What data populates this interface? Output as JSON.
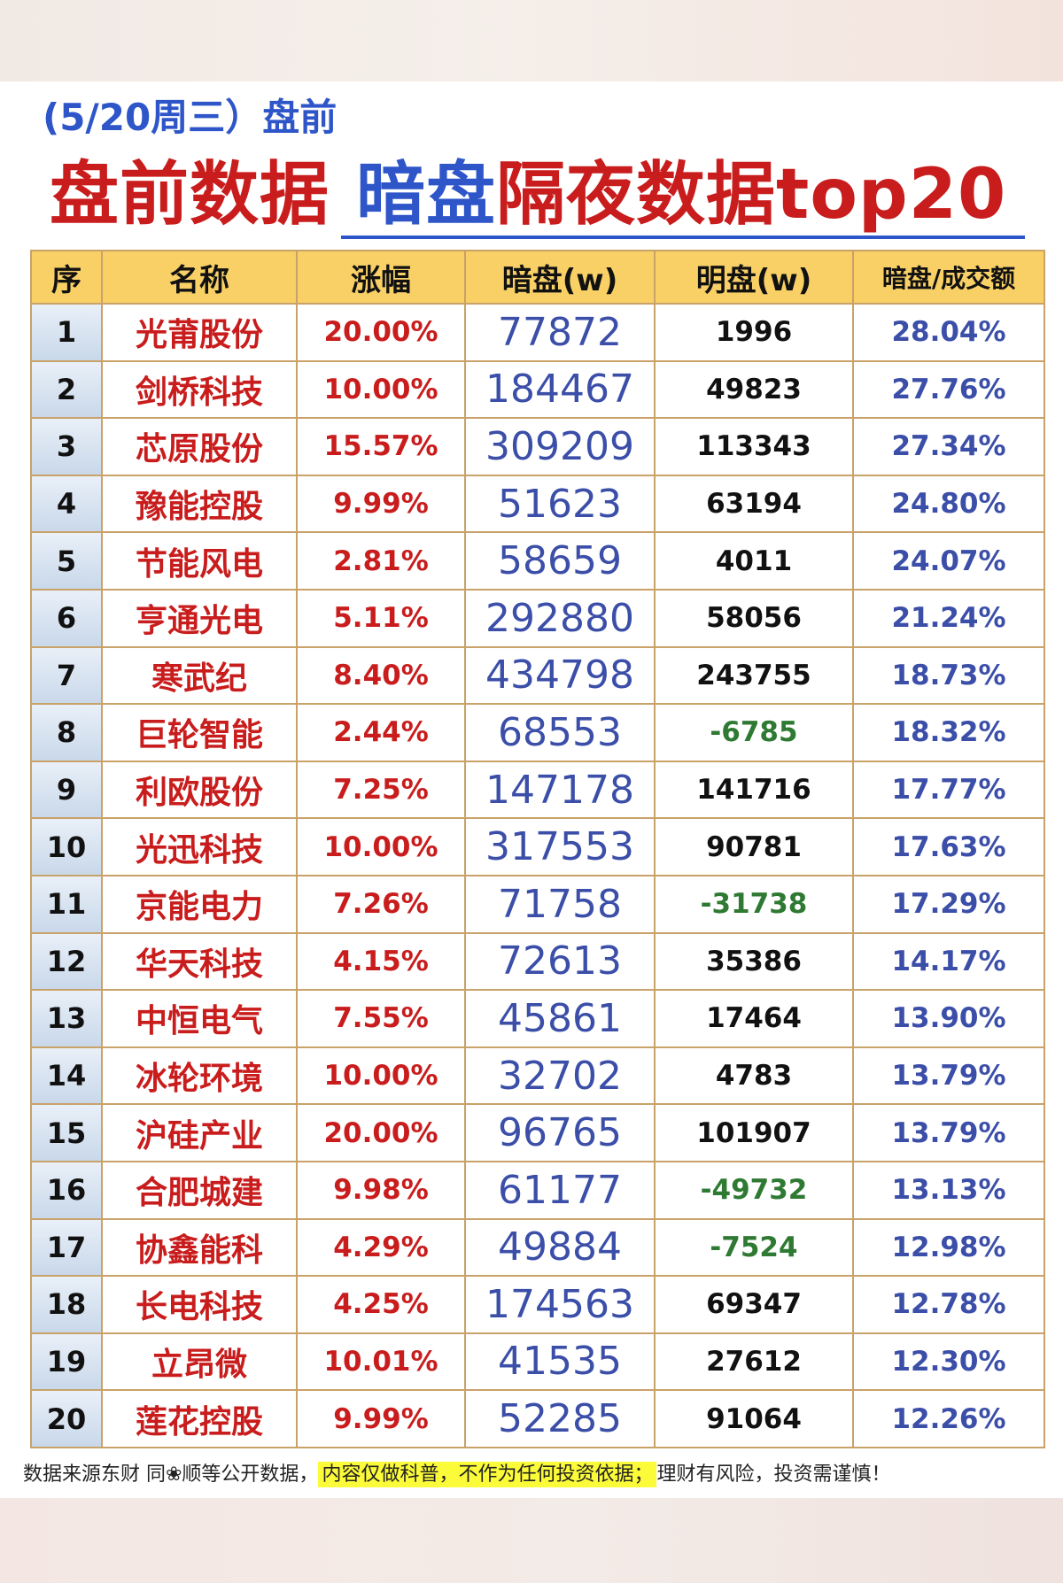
{
  "header": {
    "subtitle": "(5/20周三）盘前",
    "headline_part1": "盘前数据",
    "headline_part2": "暗盘",
    "headline_part3": "隔夜数据top20"
  },
  "table": {
    "columns": [
      "序",
      "名称",
      "涨幅",
      "暗盘(w)",
      "明盘(w)",
      "暗盘/成交额"
    ],
    "rows": [
      {
        "seq": "1",
        "name": "光莆股份",
        "change": "20.00%",
        "dark": "77872",
        "light": "1996",
        "ratio": "28.04%"
      },
      {
        "seq": "2",
        "name": "剑桥科技",
        "change": "10.00%",
        "dark": "184467",
        "light": "49823",
        "ratio": "27.76%"
      },
      {
        "seq": "3",
        "name": "芯原股份",
        "change": "15.57%",
        "dark": "309209",
        "light": "113343",
        "ratio": "27.34%"
      },
      {
        "seq": "4",
        "name": "豫能控股",
        "change": "9.99%",
        "dark": "51623",
        "light": "63194",
        "ratio": "24.80%"
      },
      {
        "seq": "5",
        "name": "节能风电",
        "change": "2.81%",
        "dark": "58659",
        "light": "4011",
        "ratio": "24.07%"
      },
      {
        "seq": "6",
        "name": "亨通光电",
        "change": "5.11%",
        "dark": "292880",
        "light": "58056",
        "ratio": "21.24%"
      },
      {
        "seq": "7",
        "name": "寒武纪",
        "change": "8.40%",
        "dark": "434798",
        "light": "243755",
        "ratio": "18.73%"
      },
      {
        "seq": "8",
        "name": "巨轮智能",
        "change": "2.44%",
        "dark": "68553",
        "light": "-6785",
        "ratio": "18.32%"
      },
      {
        "seq": "9",
        "name": "利欧股份",
        "change": "7.25%",
        "dark": "147178",
        "light": "141716",
        "ratio": "17.77%"
      },
      {
        "seq": "10",
        "name": "光迅科技",
        "change": "10.00%",
        "dark": "317553",
        "light": "90781",
        "ratio": "17.63%"
      },
      {
        "seq": "11",
        "name": "京能电力",
        "change": "7.26%",
        "dark": "71758",
        "light": "-31738",
        "ratio": "17.29%"
      },
      {
        "seq": "12",
        "name": "华天科技",
        "change": "4.15%",
        "dark": "72613",
        "light": "35386",
        "ratio": "14.17%"
      },
      {
        "seq": "13",
        "name": "中恒电气",
        "change": "7.55%",
        "dark": "45861",
        "light": "17464",
        "ratio": "13.90%"
      },
      {
        "seq": "14",
        "name": "冰轮环境",
        "change": "10.00%",
        "dark": "32702",
        "light": "4783",
        "ratio": "13.79%"
      },
      {
        "seq": "15",
        "name": "沪硅产业",
        "change": "20.00%",
        "dark": "96765",
        "light": "101907",
        "ratio": "13.79%"
      },
      {
        "seq": "16",
        "name": "合肥城建",
        "change": "9.98%",
        "dark": "61177",
        "light": "-49732",
        "ratio": "13.13%"
      },
      {
        "seq": "17",
        "name": "协鑫能科",
        "change": "4.29%",
        "dark": "49884",
        "light": "-7524",
        "ratio": "12.98%"
      },
      {
        "seq": "18",
        "name": "长电科技",
        "change": "4.25%",
        "dark": "174563",
        "light": "69347",
        "ratio": "12.78%"
      },
      {
        "seq": "19",
        "name": "立昂微",
        "change": "10.01%",
        "dark": "41535",
        "light": "27612",
        "ratio": "12.30%"
      },
      {
        "seq": "20",
        "name": "莲花控股",
        "change": "9.99%",
        "dark": "52285",
        "light": "91064",
        "ratio": "12.26%"
      }
    ]
  },
  "footer": {
    "source": "数据来源东财 同❀顺等公开数据，",
    "disclaimer": "内容仅做科普，不作为任何投资依据；",
    "risk": "理财有风险，投资需谨慎！"
  },
  "colors": {
    "red": "#c91d1d",
    "blue": "#2e56c9",
    "header_fill": "#f8d066",
    "negative": "#2f7a33",
    "highlight": "#fbfb3a"
  }
}
